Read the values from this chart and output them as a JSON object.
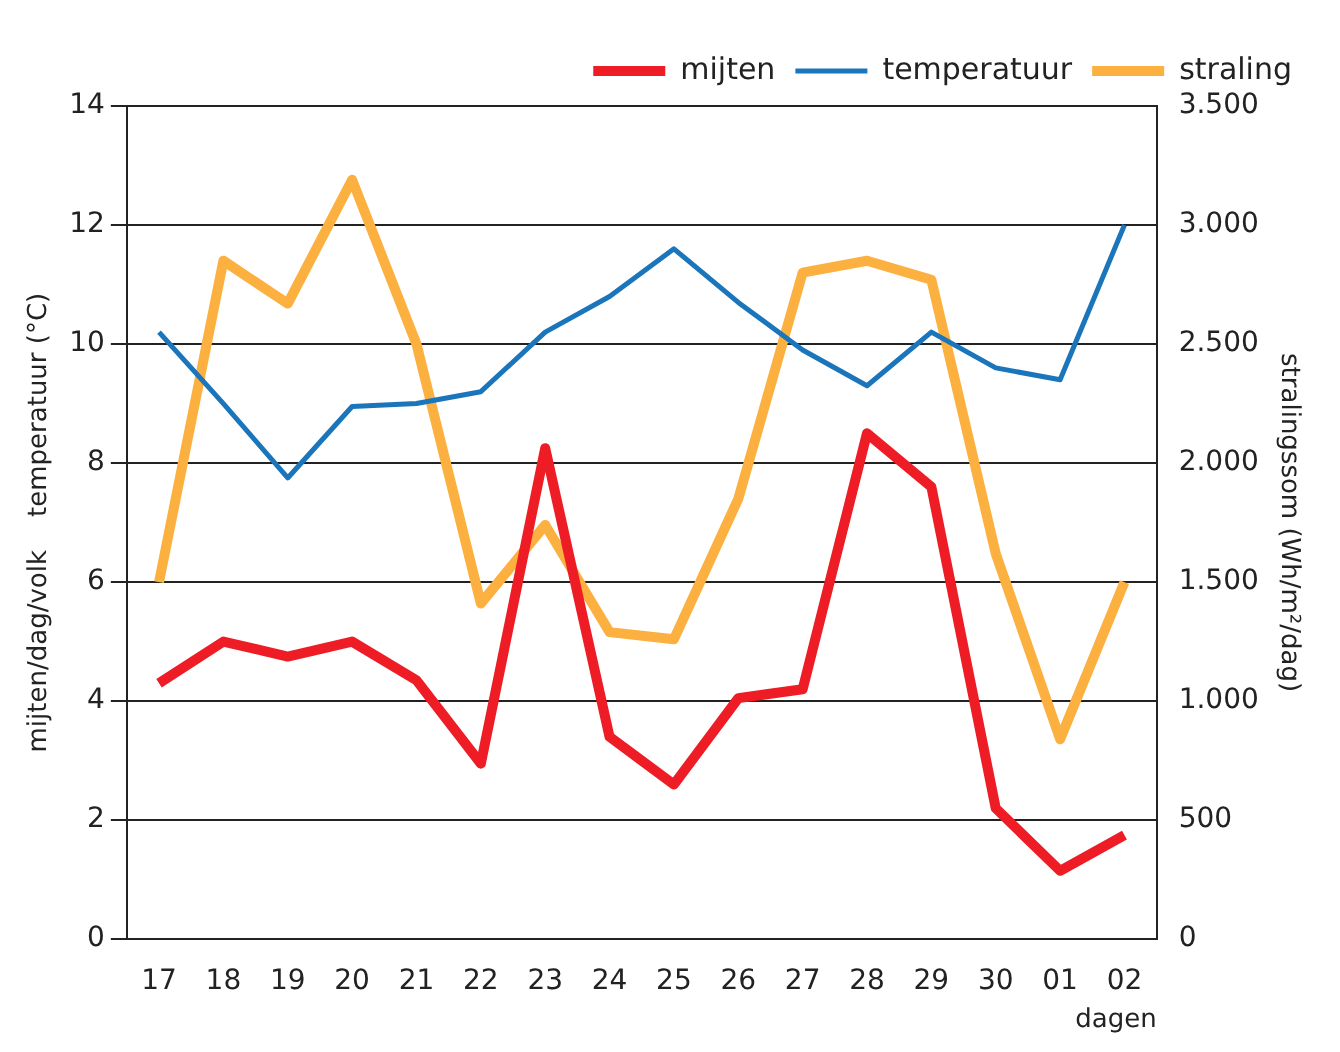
{
  "chart_data": {
    "type": "line",
    "xlabel": "dagen",
    "ylabel": "mijten/dag/volk    temperatuur (°C)",
    "y2label": "stralingssom (Wh/m²/dag)",
    "categories": [
      "17",
      "18",
      "19",
      "20",
      "21",
      "22",
      "23",
      "24",
      "25",
      "26",
      "27",
      "28",
      "29",
      "30",
      "01",
      "02"
    ],
    "series": [
      {
        "name": "mijten",
        "color": "#ee1c25",
        "values": [
          4.3,
          5.0,
          4.75,
          5.0,
          4.35,
          2.95,
          8.25,
          3.4,
          2.6,
          4.05,
          4.2,
          8.5,
          7.6,
          2.2,
          1.15,
          1.75
        ]
      },
      {
        "name": "temperatuur",
        "color": "#1a75bb",
        "values": [
          10.2,
          9.0,
          7.75,
          8.95,
          9.0,
          9.2,
          10.2,
          10.8,
          11.6,
          10.7,
          9.9,
          9.3,
          10.2,
          9.6,
          9.4,
          12.0
        ]
      },
      {
        "name": "straling",
        "color": "#fbb040",
        "axis": "y2",
        "values": [
          1500,
          2850,
          2670,
          3190,
          2500,
          1410,
          1740,
          1290,
          1260,
          1850,
          2800,
          2850,
          2770,
          1620,
          840,
          1500
        ]
      }
    ],
    "ylim": [
      0,
      14
    ],
    "yticks": [
      0,
      2,
      4,
      6,
      8,
      10,
      12,
      14
    ],
    "y2lim": [
      0,
      3500
    ],
    "y2ticks": [
      0,
      {
        "value": 500,
        "label": "500"
      },
      {
        "value": 1000,
        "label": "1.000"
      },
      {
        "value": 1500,
        "label": "1.500"
      },
      {
        "value": 2000,
        "label": "2.000"
      },
      {
        "value": 2500,
        "label": "2.500"
      },
      {
        "value": 3000,
        "label": "3.000"
      },
      {
        "value": 3500,
        "label": "3.500"
      }
    ],
    "grid": "y",
    "legend": "top right",
    "marker": "none",
    "line_style": "solid"
  }
}
